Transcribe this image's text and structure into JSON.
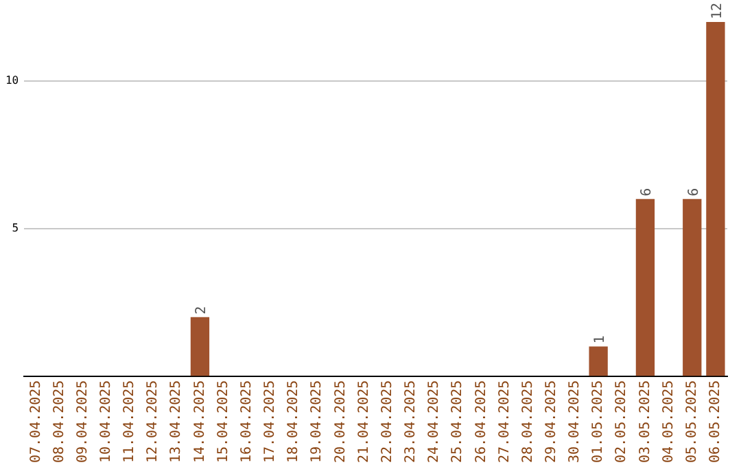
{
  "chart_data": {
    "type": "bar",
    "categories": [
      "07.04.2025",
      "08.04.2025",
      "09.04.2025",
      "10.04.2025",
      "11.04.2025",
      "12.04.2025",
      "13.04.2025",
      "14.04.2025",
      "15.04.2025",
      "16.04.2025",
      "17.04.2025",
      "18.04.2025",
      "19.04.2025",
      "20.04.2025",
      "21.04.2025",
      "22.04.2025",
      "23.04.2025",
      "24.04.2025",
      "25.04.2025",
      "26.04.2025",
      "27.04.2025",
      "28.04.2025",
      "29.04.2025",
      "30.04.2025",
      "01.05.2025",
      "02.05.2025",
      "03.05.2025",
      "04.05.2025",
      "05.05.2025",
      "06.05.2025"
    ],
    "values": [
      0,
      0,
      0,
      0,
      0,
      0,
      0,
      2,
      0,
      0,
      0,
      0,
      0,
      0,
      0,
      0,
      0,
      0,
      0,
      0,
      0,
      0,
      0,
      0,
      1,
      0,
      6,
      0,
      6,
      12
    ],
    "value_labels": [
      null,
      null,
      null,
      null,
      null,
      null,
      null,
      "2",
      null,
      null,
      null,
      null,
      null,
      null,
      null,
      null,
      null,
      null,
      null,
      null,
      null,
      null,
      null,
      null,
      "1",
      null,
      "6",
      null,
      "6",
      "12"
    ],
    "color": "#a0522d",
    "ylim": [
      0,
      12
    ],
    "yticks": [
      5,
      10
    ],
    "grid": "y",
    "legend": false
  }
}
